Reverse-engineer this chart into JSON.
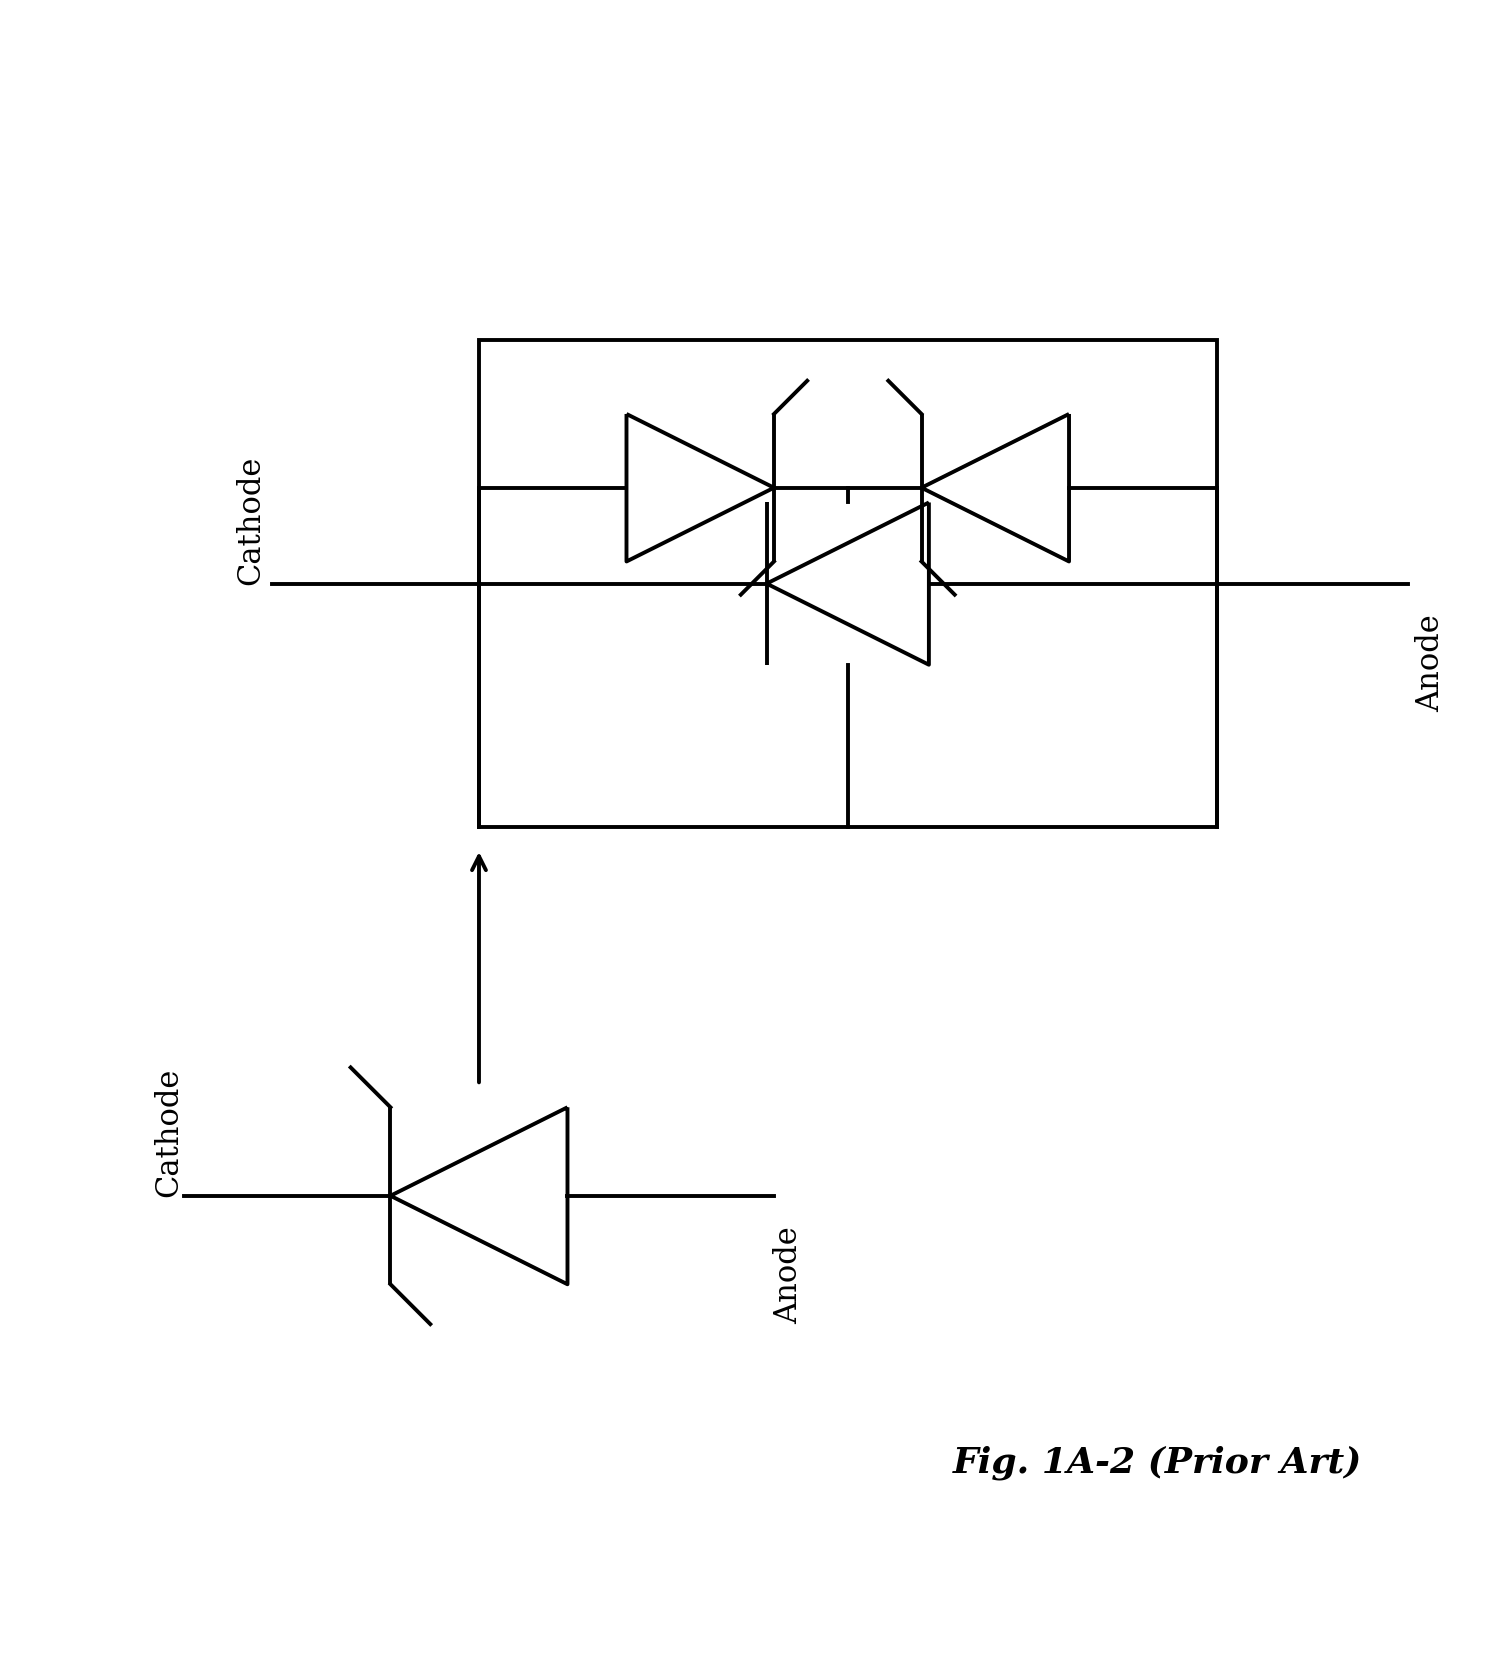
{
  "bg_color": "#ffffff",
  "line_color": "#000000",
  "line_width": 2.8,
  "fig_title": "Fig. 1A-2 (Prior Art)",
  "title_fontsize": 26,
  "label_fontsize": 22,
  "figsize": [
    14.89,
    16.56
  ],
  "dpi": 100,
  "xlim": [
    0,
    10
  ],
  "ylim": [
    0,
    11
  ]
}
